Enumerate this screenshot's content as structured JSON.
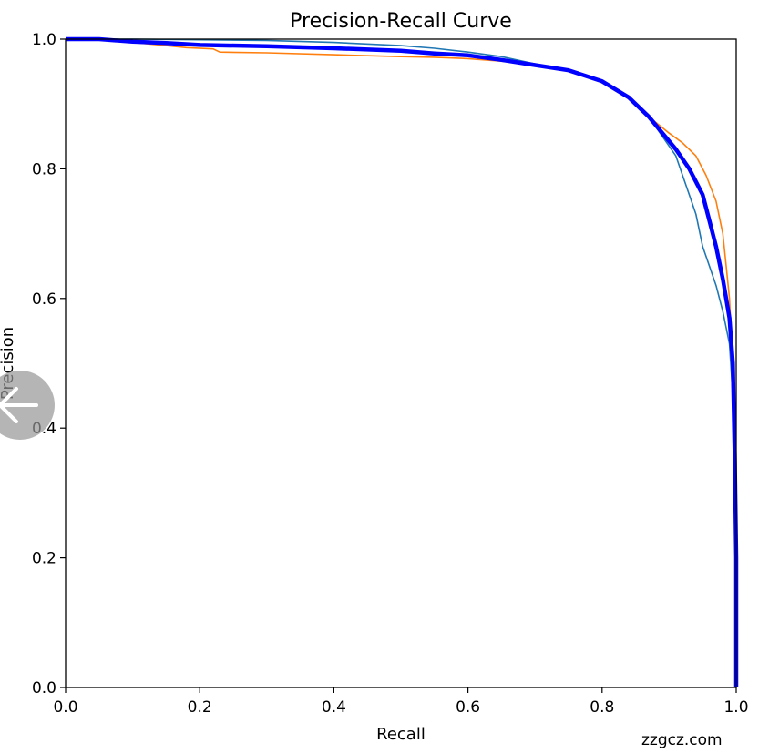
{
  "chart_data": {
    "type": "line",
    "title": "Precision-Recall Curve",
    "xlabel": "Recall",
    "ylabel": "Precision",
    "xlim": [
      0.0,
      1.0
    ],
    "ylim": [
      0.0,
      1.0
    ],
    "xticks": [
      "0.0",
      "0.2",
      "0.4",
      "0.6",
      "0.8",
      "1.0"
    ],
    "yticks": [
      "0.0",
      "0.2",
      "0.4",
      "0.6",
      "0.8",
      "1.0"
    ],
    "grid": false,
    "series": [
      {
        "color": "#ff7f0e",
        "stroke": "thin",
        "points": [
          [
            0,
            1.0
          ],
          [
            0.05,
            1.0
          ],
          [
            0.1,
            0.995
          ],
          [
            0.15,
            0.99
          ],
          [
            0.18,
            0.987
          ],
          [
            0.22,
            0.985
          ],
          [
            0.23,
            0.98
          ],
          [
            0.3,
            0.979
          ],
          [
            0.4,
            0.976
          ],
          [
            0.5,
            0.973
          ],
          [
            0.55,
            0.972
          ],
          [
            0.6,
            0.97
          ],
          [
            0.65,
            0.966
          ],
          [
            0.7,
            0.96
          ],
          [
            0.75,
            0.952
          ],
          [
            0.8,
            0.935
          ],
          [
            0.84,
            0.91
          ],
          [
            0.87,
            0.88
          ],
          [
            0.9,
            0.855
          ],
          [
            0.92,
            0.84
          ],
          [
            0.94,
            0.82
          ],
          [
            0.955,
            0.79
          ],
          [
            0.97,
            0.75
          ],
          [
            0.98,
            0.7
          ],
          [
            0.985,
            0.65
          ],
          [
            0.99,
            0.6
          ],
          [
            0.995,
            0.5
          ],
          [
            0.998,
            0.3
          ],
          [
            1.0,
            0.0
          ]
        ]
      },
      {
        "color": "#1f77b4",
        "stroke": "thin",
        "points": [
          [
            0,
            1.0
          ],
          [
            0.05,
            1.0
          ],
          [
            0.1,
            1.0
          ],
          [
            0.2,
            0.999
          ],
          [
            0.3,
            0.998
          ],
          [
            0.4,
            0.995
          ],
          [
            0.5,
            0.99
          ],
          [
            0.55,
            0.986
          ],
          [
            0.6,
            0.98
          ],
          [
            0.65,
            0.973
          ],
          [
            0.7,
            0.962
          ],
          [
            0.75,
            0.952
          ],
          [
            0.8,
            0.935
          ],
          [
            0.84,
            0.91
          ],
          [
            0.87,
            0.88
          ],
          [
            0.89,
            0.85
          ],
          [
            0.91,
            0.82
          ],
          [
            0.92,
            0.79
          ],
          [
            0.93,
            0.76
          ],
          [
            0.94,
            0.73
          ],
          [
            0.95,
            0.68
          ],
          [
            0.96,
            0.65
          ],
          [
            0.97,
            0.62
          ],
          [
            0.98,
            0.58
          ],
          [
            0.99,
            0.53
          ],
          [
            0.995,
            0.45
          ],
          [
            0.998,
            0.3
          ],
          [
            1.0,
            0.0
          ]
        ]
      },
      {
        "color": "#0000ff",
        "stroke": "thick",
        "points": [
          [
            0,
            1.0
          ],
          [
            0.05,
            1.0
          ],
          [
            0.1,
            0.996
          ],
          [
            0.15,
            0.994
          ],
          [
            0.2,
            0.991
          ],
          [
            0.3,
            0.989
          ],
          [
            0.4,
            0.986
          ],
          [
            0.5,
            0.982
          ],
          [
            0.55,
            0.978
          ],
          [
            0.6,
            0.975
          ],
          [
            0.65,
            0.968
          ],
          [
            0.7,
            0.96
          ],
          [
            0.75,
            0.952
          ],
          [
            0.8,
            0.935
          ],
          [
            0.84,
            0.91
          ],
          [
            0.87,
            0.88
          ],
          [
            0.89,
            0.855
          ],
          [
            0.91,
            0.83
          ],
          [
            0.93,
            0.8
          ],
          [
            0.95,
            0.76
          ],
          [
            0.96,
            0.72
          ],
          [
            0.97,
            0.68
          ],
          [
            0.98,
            0.63
          ],
          [
            0.99,
            0.57
          ],
          [
            0.995,
            0.5
          ],
          [
            0.998,
            0.35
          ],
          [
            1.0,
            0.2
          ],
          [
            1.0,
            0.0
          ]
        ]
      }
    ]
  },
  "watermark": "zzgcz.com",
  "nav": {
    "icon": "arrow-left-icon"
  }
}
